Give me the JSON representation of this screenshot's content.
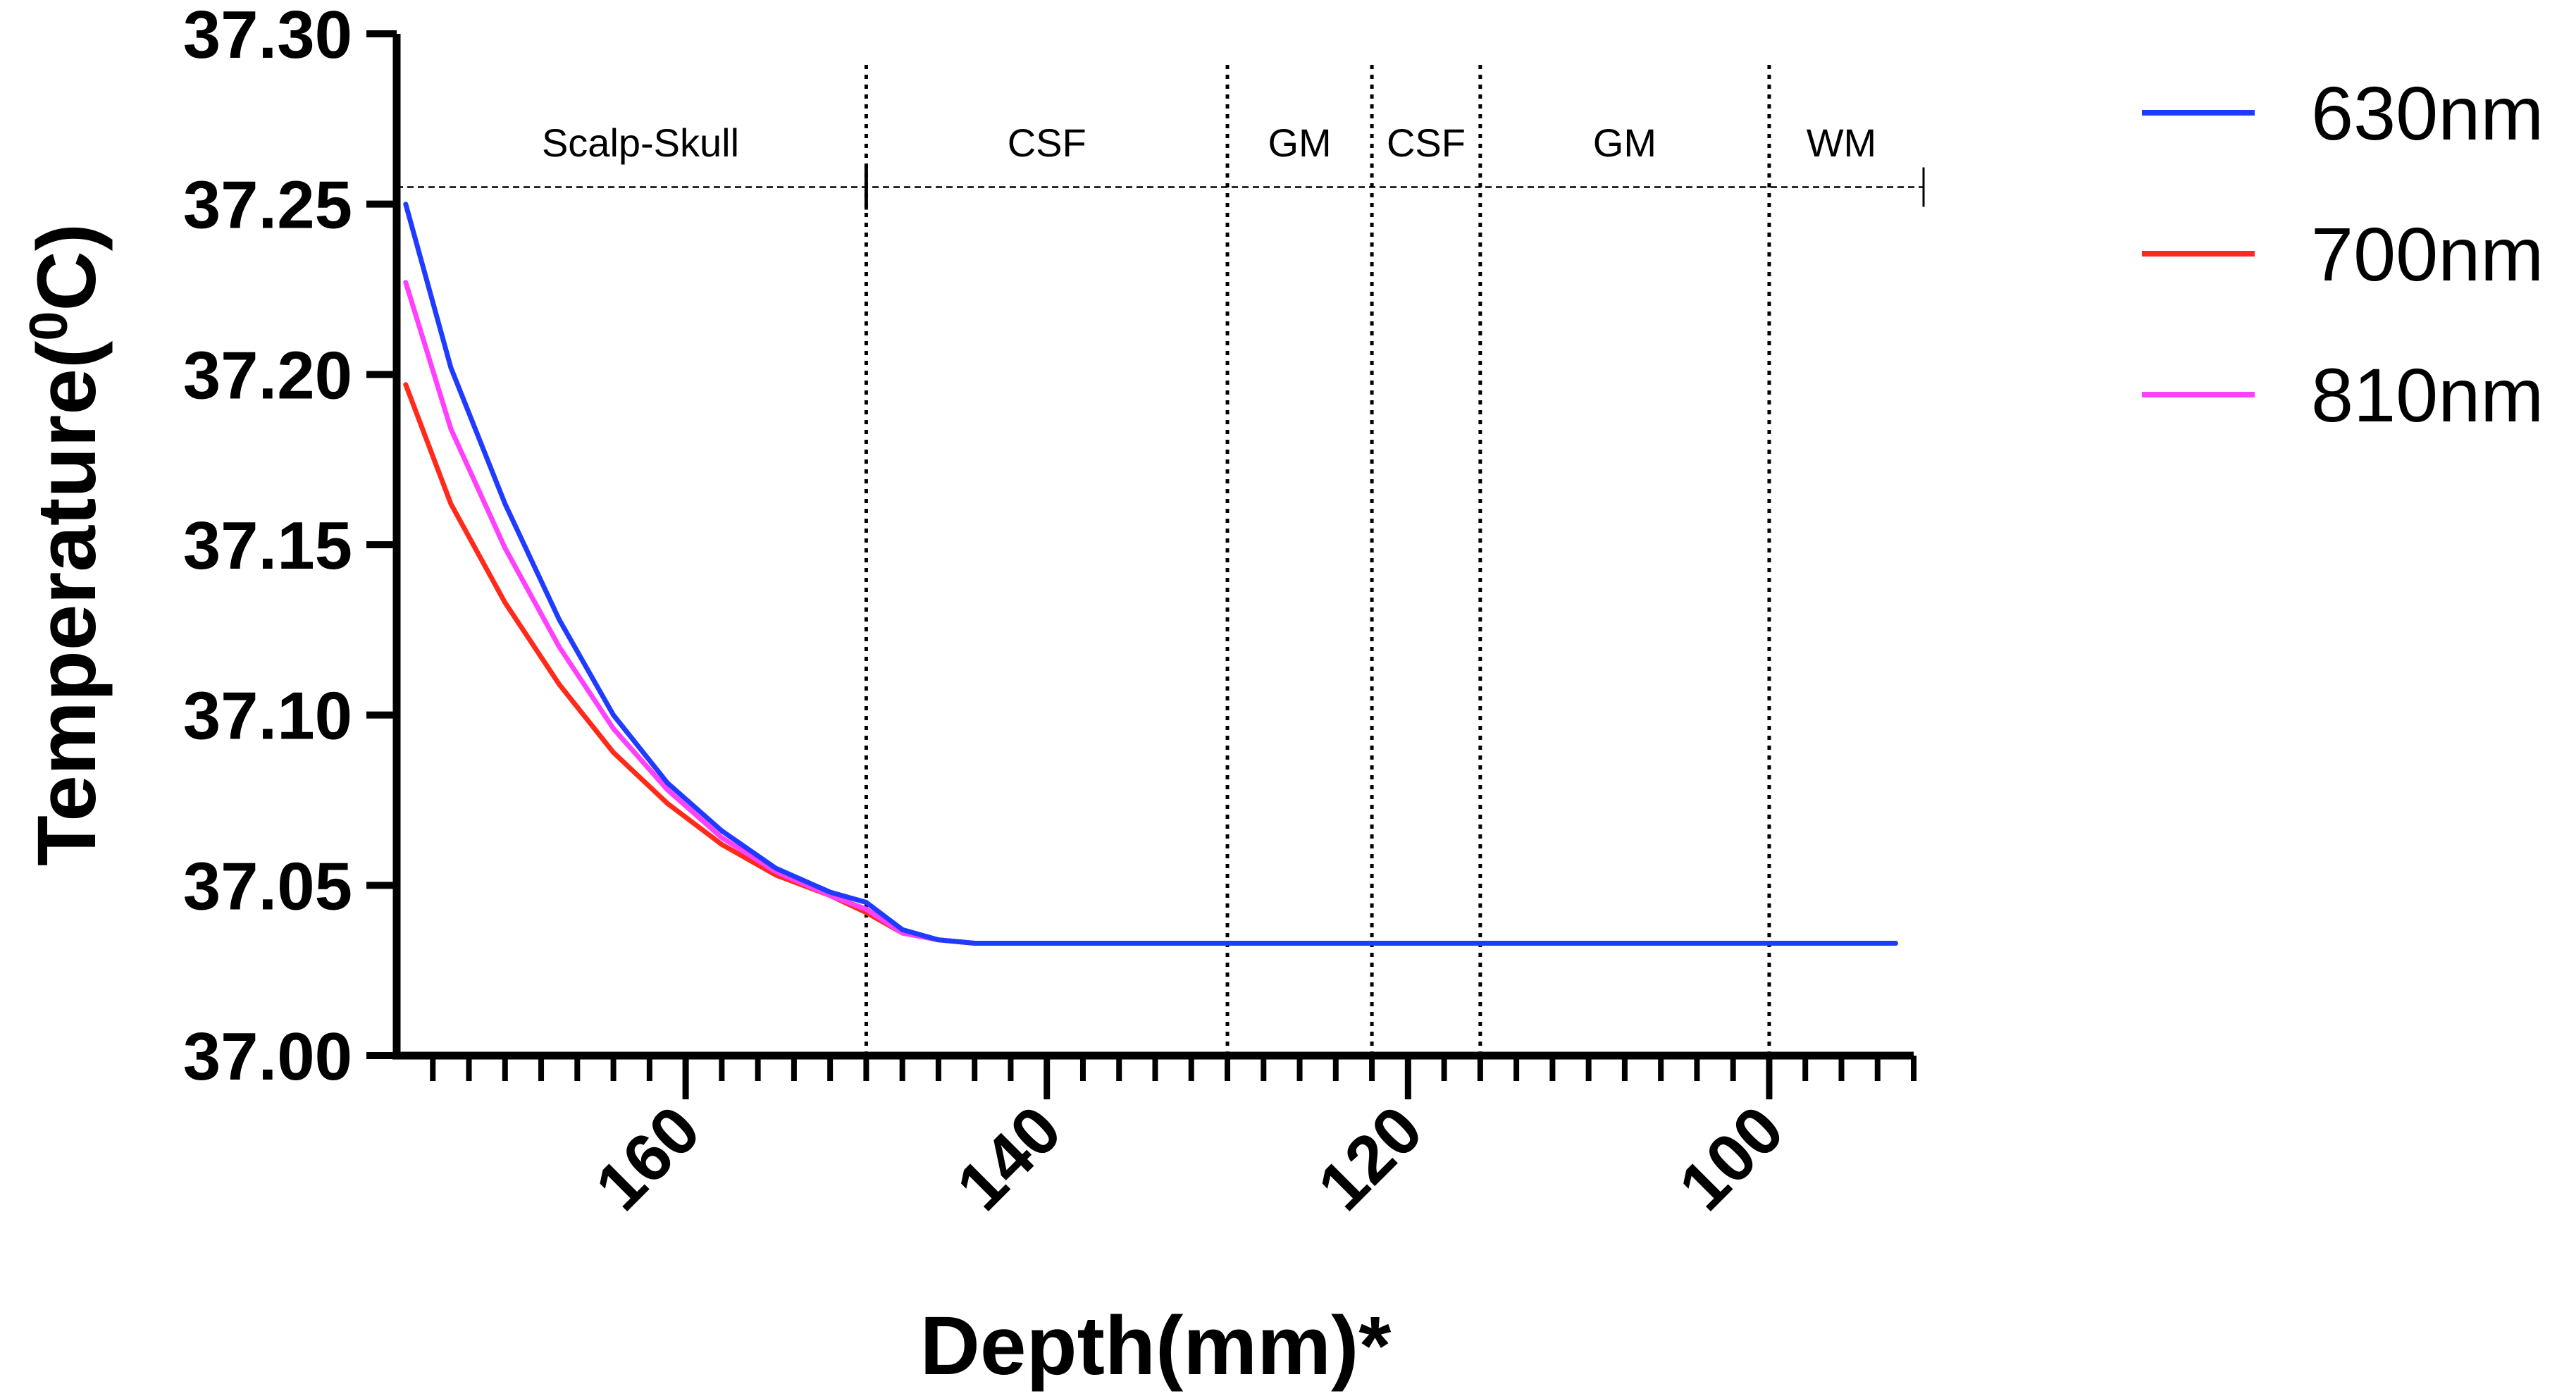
{
  "chart_data": {
    "type": "line",
    "title": "",
    "xlabel": "Depth(mm)*",
    "ylabel_prefix": "Temperature(",
    "ylabel_sup": "0",
    "ylabel_suffix": "C)",
    "xlim": [
      176,
      92
    ],
    "ylim": [
      37.0,
      37.3
    ],
    "x_ticks": [
      160,
      140,
      120,
      100
    ],
    "x_tick_labels": [
      "160",
      "140",
      "120",
      "100"
    ],
    "y_ticks": [
      37.0,
      37.05,
      37.1,
      37.15,
      37.2,
      37.25,
      37.3
    ],
    "y_tick_labels": [
      "37.00",
      "37.05",
      "37.10",
      "37.15",
      "37.20",
      "37.25",
      "37.30"
    ],
    "region_line_y": 37.255,
    "boundaries": [
      150,
      130,
      122,
      116,
      100
    ],
    "regions": [
      {
        "label": "Scalp-Skull",
        "center": 162.5
      },
      {
        "label": "CSF",
        "center": 140
      },
      {
        "label": "GM",
        "center": 126
      },
      {
        "label": "CSF",
        "center": 119
      },
      {
        "label": "GM",
        "center": 108
      },
      {
        "label": "WM",
        "center": 96
      }
    ],
    "legend_position": "top-right",
    "series": [
      {
        "name": "630nm",
        "color": "#1f3bff",
        "x": [
          175.5,
          173,
          170,
          167,
          164,
          161,
          158,
          155,
          152,
          150,
          148,
          146,
          144,
          142,
          138,
          130,
          120,
          110,
          100,
          93
        ],
        "y": [
          37.25,
          37.202,
          37.162,
          37.128,
          37.1,
          37.08,
          37.066,
          37.055,
          37.048,
          37.045,
          37.037,
          37.034,
          37.033,
          37.033,
          37.033,
          37.033,
          37.033,
          37.033,
          37.033,
          37.033
        ]
      },
      {
        "name": "700nm",
        "color": "#ff2a1a",
        "x": [
          175.5,
          173,
          170,
          167,
          164,
          161,
          158,
          155,
          152,
          150,
          148,
          146,
          144,
          142,
          138,
          130,
          120,
          110,
          100,
          93
        ],
        "y": [
          37.197,
          37.162,
          37.133,
          37.109,
          37.089,
          37.074,
          37.062,
          37.053,
          37.047,
          37.042,
          37.036,
          37.034,
          37.033,
          37.033,
          37.033,
          37.033,
          37.033,
          37.033,
          37.033,
          37.033
        ]
      },
      {
        "name": "810nm",
        "color": "#ff40ff",
        "x": [
          175.5,
          173,
          170,
          167,
          164,
          161,
          158,
          155,
          152,
          150,
          148,
          146,
          144,
          142,
          138,
          130,
          120,
          110,
          100,
          93
        ],
        "y": [
          37.227,
          37.184,
          37.149,
          37.12,
          37.096,
          37.078,
          37.064,
          37.054,
          37.047,
          37.043,
          37.036,
          37.034,
          37.033,
          37.033,
          37.033,
          37.033,
          37.033,
          37.033,
          37.033,
          37.033
        ]
      }
    ]
  }
}
